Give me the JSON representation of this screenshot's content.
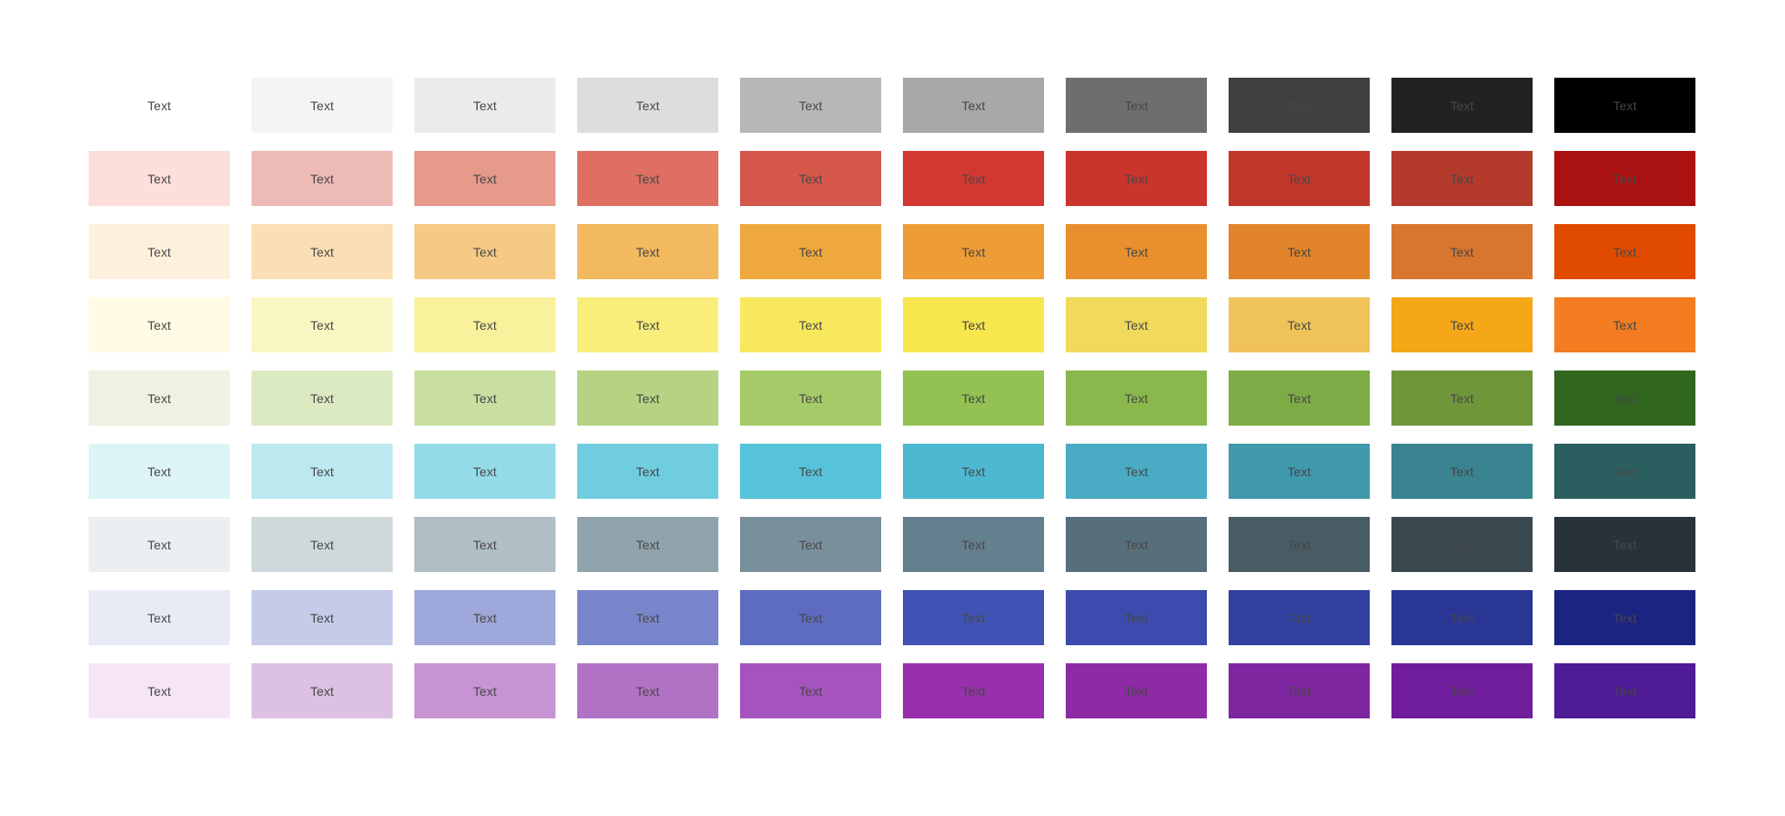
{
  "swatch_label": "Text",
  "label_color": "#474747",
  "background": "#ffffff",
  "grid": {
    "columns": 10,
    "rows": [
      {
        "name": "gray",
        "colors": [
          "#ffffff",
          "#f4f4f4",
          "#ebebeb",
          "#dddddd",
          "#b7b7b7",
          "#a8a8a8",
          "#6e6e6e",
          "#404040",
          "#222222",
          "#000000"
        ]
      },
      {
        "name": "red",
        "colors": [
          "#fcdeda",
          "#eebab6",
          "#e59a8a",
          "#df6f62",
          "#d5574a",
          "#d23831",
          "#ca342c",
          "#c1362b",
          "#b43a2c",
          "#a91210"
        ]
      },
      {
        "name": "orange",
        "colors": [
          "#fdf0dd",
          "#fadfb5",
          "#f6ca84",
          "#f3b95f",
          "#efa83d",
          "#ee9c35",
          "#e98f2e",
          "#e28429",
          "#d8752e",
          "#e04b00"
        ]
      },
      {
        "name": "yellow",
        "colors": [
          "#fffbe5",
          "#fbf7c2",
          "#faf19c",
          "#f9ee7b",
          "#f8e85e",
          "#f7e64d",
          "#f1d95b",
          "#efc35a",
          "#f4a717",
          "#f37d20"
        ]
      },
      {
        "name": "green",
        "colors": [
          "#eef3e1",
          "#dceac2",
          "#c9dfa2",
          "#b5d383",
          "#a4cb68",
          "#93c154",
          "#8ab84d",
          "#7dab45",
          "#6f973a",
          "#30661d"
        ]
      },
      {
        "name": "cyan",
        "colors": [
          "#ddf4f7",
          "#bce8f0",
          "#94dbe8",
          "#70cde0",
          "#57c3d9",
          "#4db8d1",
          "#4aacc4",
          "#4098ad",
          "#398490",
          "#2b5e5f"
        ]
      },
      {
        "name": "blue-gray",
        "colors": [
          "#eceff1",
          "#cfd8db",
          "#b0bec5",
          "#90a3ad",
          "#798f9b",
          "#64808e",
          "#576f7a",
          "#495c64",
          "#39474e",
          "#273339"
        ]
      },
      {
        "name": "indigo",
        "colors": [
          "#e8eaf6",
          "#c6cbe9",
          "#9fa8da",
          "#7a86cb",
          "#5d6bc0",
          "#4052b4",
          "#3c4bad",
          "#32419f",
          "#2a3694",
          "#1c2481"
        ]
      },
      {
        "name": "purple",
        "colors": [
          "#f5e5f5",
          "#dcc1e2",
          "#c794d3",
          "#b172c6",
          "#a554bd",
          "#9830ad",
          "#8c2ba3",
          "#7d26a0",
          "#701d9b",
          "#4e1a96"
        ]
      }
    ]
  }
}
